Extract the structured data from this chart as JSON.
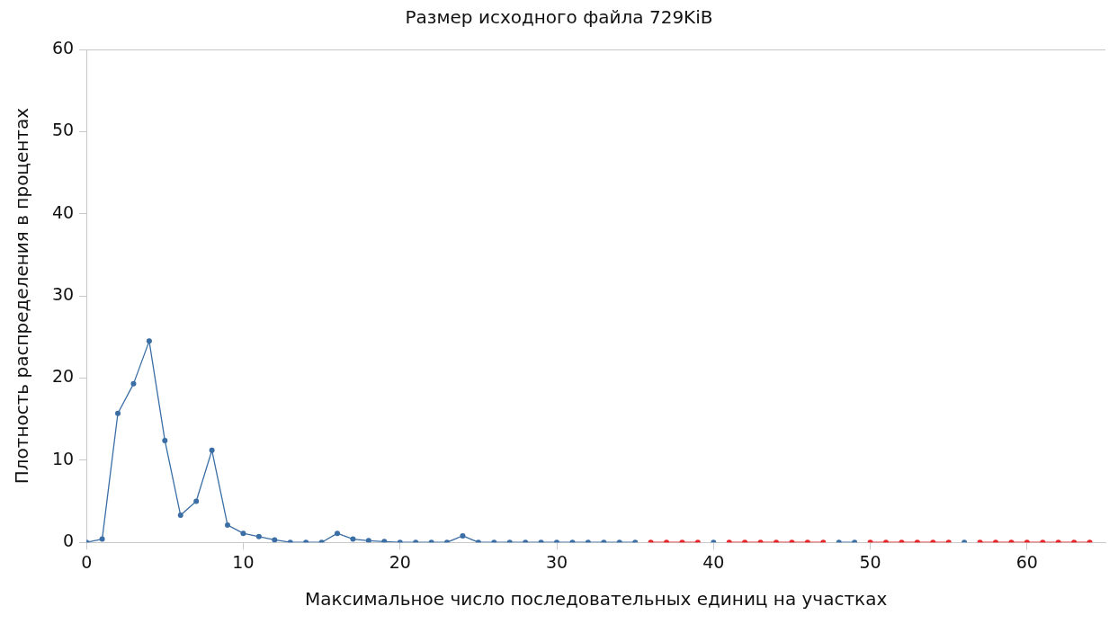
{
  "chart_data": {
    "type": "line",
    "title": "Размер исходного файла 729KiB",
    "xlabel": "Максимальное число последовательных единиц на участках",
    "ylabel": "Плотность распределения в процентах",
    "x": [
      0,
      1,
      2,
      3,
      4,
      5,
      6,
      7,
      8,
      9,
      10,
      11,
      12,
      13,
      14,
      15,
      16,
      17,
      18,
      19,
      20,
      21,
      22,
      23,
      24,
      25,
      26,
      27,
      28,
      29,
      30,
      31,
      32,
      33,
      34,
      35,
      36,
      37,
      38,
      39,
      40,
      41,
      42,
      43,
      44,
      45,
      46,
      47,
      48,
      49,
      50,
      51,
      52,
      53,
      54,
      55,
      56,
      57,
      58,
      59,
      60,
      61,
      62,
      63,
      64
    ],
    "series": [
      {
        "color": "#3a6ea5",
        "values": [
          0,
          0.4,
          15.7,
          19.3,
          24.5,
          12.4,
          3.3,
          5.0,
          11.2,
          2.1,
          1.1,
          0.7,
          0.3,
          0,
          0,
          0,
          1.1,
          0.4,
          0.2,
          0.1,
          0,
          0,
          0,
          0,
          0.8,
          0,
          0,
          0,
          0,
          0,
          0,
          0,
          0,
          0,
          0,
          0,
          null,
          null,
          null,
          null,
          0,
          null,
          null,
          null,
          null,
          null,
          null,
          null,
          0,
          0,
          null,
          null,
          null,
          null,
          null,
          null,
          0,
          null,
          null,
          null,
          null,
          null,
          null,
          null,
          null
        ]
      },
      {
        "color": "#e8262a",
        "values": [
          null,
          null,
          null,
          null,
          null,
          null,
          null,
          null,
          null,
          null,
          null,
          null,
          null,
          null,
          null,
          null,
          null,
          null,
          null,
          null,
          null,
          null,
          null,
          null,
          null,
          null,
          null,
          null,
          null,
          null,
          null,
          null,
          null,
          null,
          null,
          null,
          0,
          0,
          0,
          0,
          null,
          0,
          0,
          0,
          0,
          0,
          0,
          0,
          null,
          null,
          0,
          0,
          0,
          0,
          0,
          0,
          null,
          0,
          0,
          0,
          0,
          0,
          0,
          0,
          0
        ]
      }
    ],
    "xlim": [
      0,
      65
    ],
    "xticks": [
      0,
      10,
      20,
      30,
      40,
      50,
      60
    ],
    "ylim": [
      0,
      60
    ],
    "yticks": [
      0,
      10,
      20,
      30,
      40,
      50,
      60
    ],
    "grid": false,
    "legend": false,
    "marker": "circle",
    "line_style": "solid"
  }
}
